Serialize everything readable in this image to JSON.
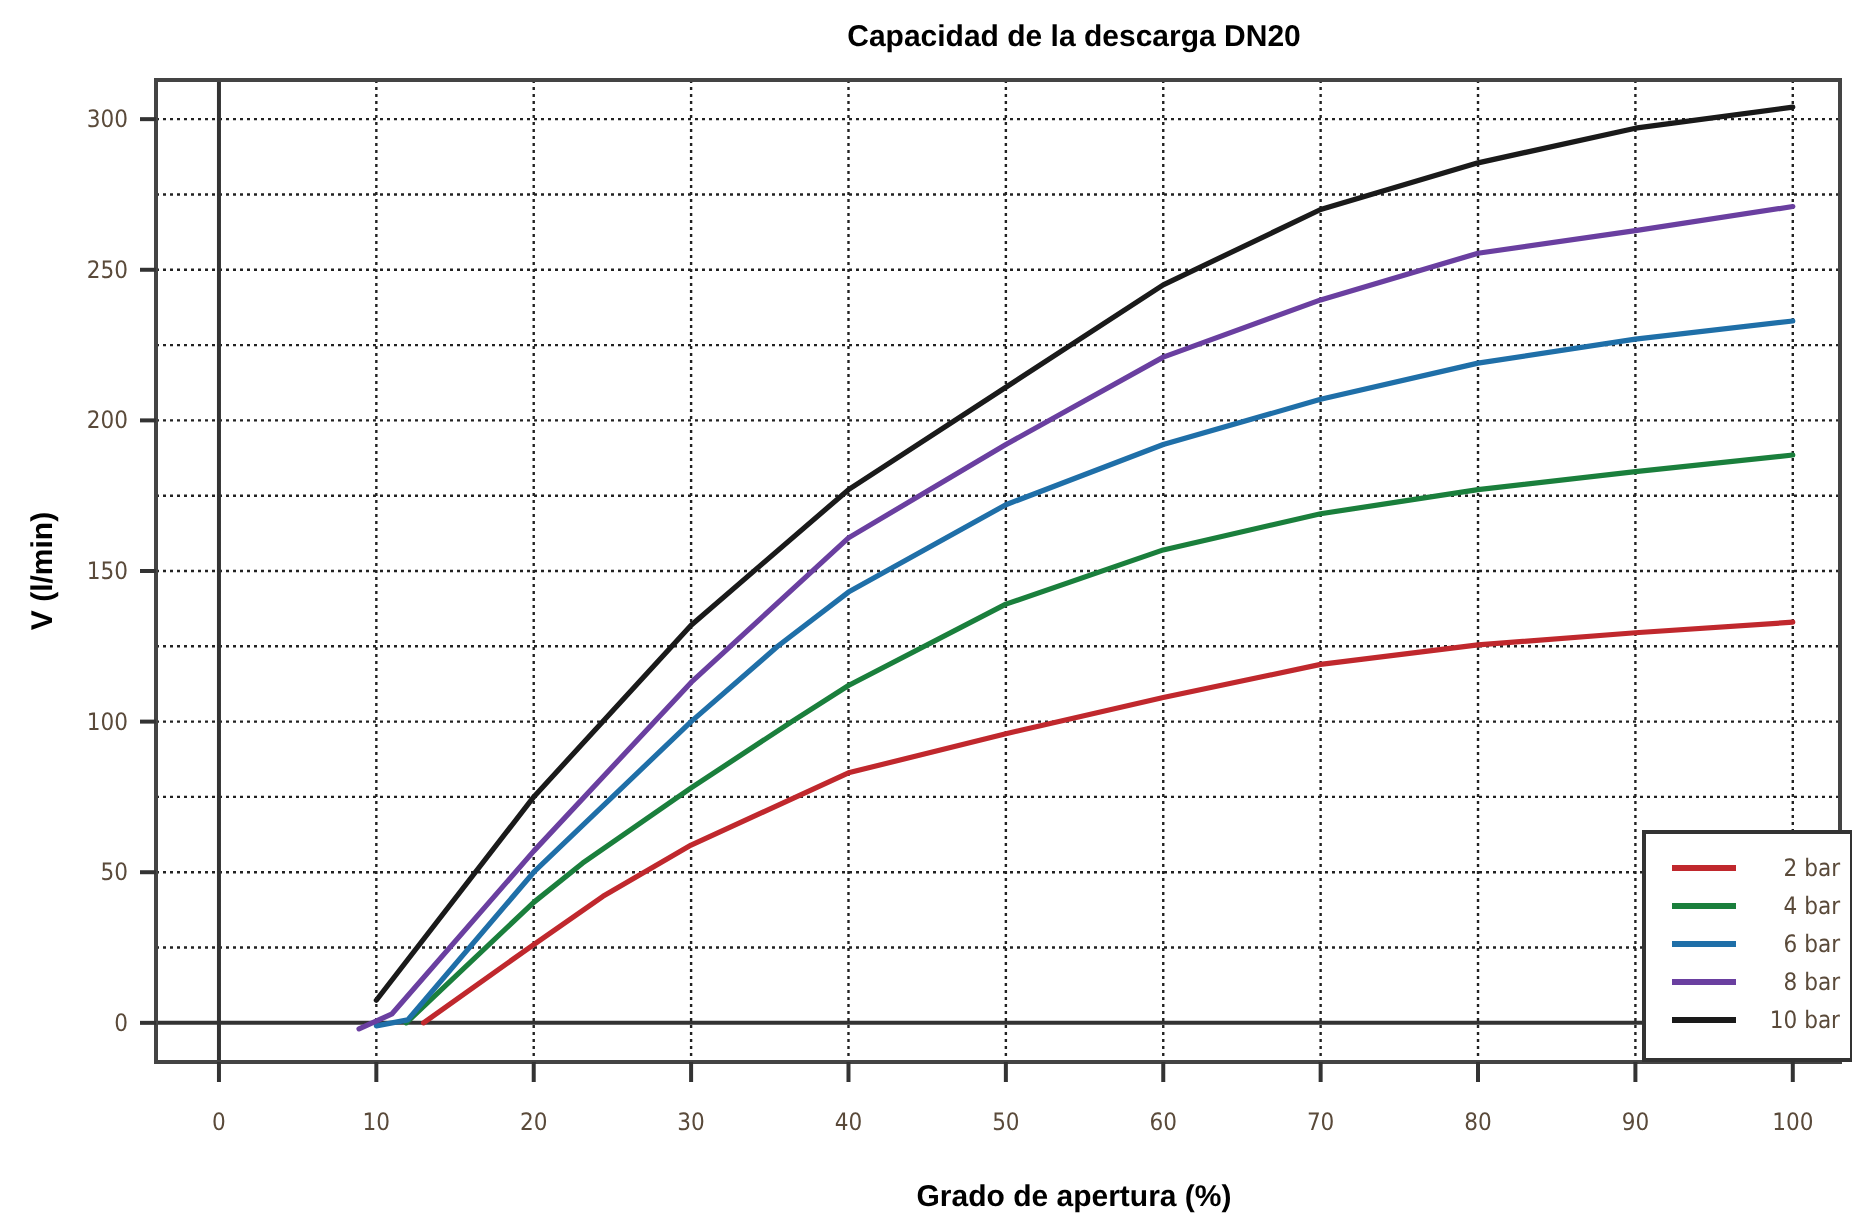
{
  "chart_data": {
    "type": "line",
    "title": "Capacidad  de la descarga  DN20",
    "xlabel": "Grado de apertura (%)",
    "ylabel": "V (l/min)",
    "xlim": [
      -4,
      103
    ],
    "ylim": [
      -13,
      313
    ],
    "xticks": [
      0,
      10,
      20,
      30,
      40,
      50,
      60,
      70,
      80,
      90,
      100
    ],
    "yticks": [
      0,
      {
        "value": 25,
        "label": null
      },
      50,
      {
        "value": 75,
        "label": null
      },
      100,
      {
        "value": 125,
        "label": null
      },
      150,
      {
        "value": 175,
        "label": null
      },
      200,
      {
        "value": 225,
        "label": null
      },
      250,
      {
        "value": 275,
        "label": null
      },
      300
    ],
    "grid": true,
    "legend": "bottom right",
    "line_style": "solid",
    "marker": "none",
    "series": [
      {
        "name": "2 bar",
        "color": "#c0282d",
        "x": [
          13,
          20,
          24.4,
          30,
          40,
          50,
          60,
          70,
          80,
          90,
          100
        ],
        "values": [
          0,
          26,
          42,
          59,
          83,
          96,
          108,
          119,
          125.5,
          129.5,
          133
        ]
      },
      {
        "name": "4 bar",
        "color": "#1a7f3c",
        "x": [
          11.9,
          20,
          23.1,
          30,
          36.4,
          40,
          50,
          60,
          70,
          80,
          90,
          100
        ],
        "values": [
          0,
          40,
          53,
          78,
          100,
          112,
          139,
          157,
          169,
          177,
          183,
          188.5
        ]
      },
      {
        "name": "6 bar",
        "color": "#1f6fa8",
        "x": [
          10,
          12,
          20,
          30,
          35.5,
          40,
          50,
          60,
          70,
          80,
          90,
          100
        ],
        "values": [
          -1,
          1,
          50,
          100,
          125,
          143,
          172,
          192,
          207,
          219,
          227,
          233
        ]
      },
      {
        "name": "8 bar",
        "color": "#6a3fa0",
        "x": [
          8.9,
          11,
          20,
          30,
          40,
          50,
          60,
          70,
          80,
          90,
          100
        ],
        "values": [
          -2,
          3,
          57,
          113,
          161,
          192,
          221,
          240,
          255.5,
          263,
          271
        ]
      },
      {
        "name": "10 bar",
        "color": "#1a1a1a",
        "x": [
          10,
          20,
          30,
          40,
          50,
          60,
          70,
          80,
          90,
          100
        ],
        "values": [
          7.5,
          75,
          132,
          177,
          211,
          245,
          270,
          285.5,
          297,
          304
        ]
      }
    ]
  }
}
